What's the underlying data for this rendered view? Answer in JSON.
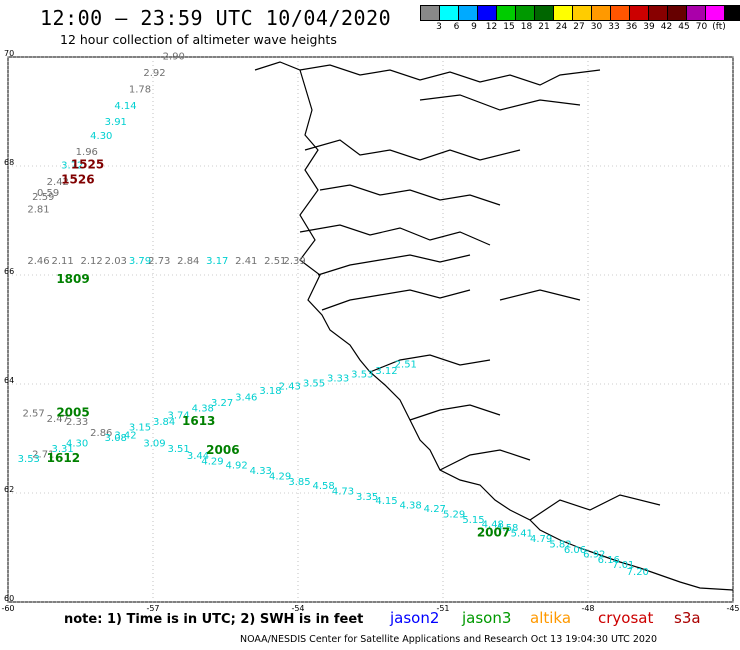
{
  "header": {
    "title": "12:00 – 23:59 UTC 10/04/2020",
    "subtitle": "12 hour collection of altimeter wave heights"
  },
  "legend": {
    "colors": [
      "#888888",
      "#00ffff",
      "#00aaff",
      "#0000ff",
      "#00cc00",
      "#009900",
      "#006600",
      "#ffff00",
      "#ffcc00",
      "#ff9900",
      "#ff5500",
      "#cc0000",
      "#880000",
      "#660000",
      "#aa00aa",
      "#ff00ff",
      "#000000"
    ],
    "labels": [
      "3",
      "6",
      "9",
      "12",
      "15",
      "18",
      "21",
      "24",
      "27",
      "30",
      "33",
      "36",
      "39",
      "42",
      "45",
      "70",
      "(ft)"
    ]
  },
  "axes": {
    "lat_ticks": [
      "70",
      "68",
      "66",
      "64",
      "62",
      "60"
    ],
    "lon_ticks": [
      "-60",
      "-57",
      "-54",
      "-51",
      "-48",
      "-45"
    ]
  },
  "tracks": [
    {
      "name": "1525",
      "color": "#800000",
      "label_lon": -58.7,
      "label_lat": 67.95
    },
    {
      "name": "1526",
      "color": "#800000",
      "label_lon": -58.9,
      "label_lat": 67.68
    },
    {
      "name": "1809",
      "color": "#008000",
      "label_lon": -59.0,
      "label_lat": 65.85
    },
    {
      "name": "2005",
      "color": "#008000",
      "label_lon": -59.0,
      "label_lat": 63.4
    },
    {
      "name": "1613",
      "color": "#008000",
      "label_lon": -56.4,
      "label_lat": 63.25
    },
    {
      "name": "2006",
      "color": "#008000",
      "label_lon": -55.9,
      "label_lat": 62.72
    },
    {
      "name": "1612",
      "color": "#008000",
      "label_lon": -59.2,
      "label_lat": 62.57
    },
    {
      "name": "2007",
      "color": "#008000",
      "label_lon": -50.3,
      "label_lat": 61.2
    }
  ],
  "observations": [
    {
      "v": "2.90",
      "c": "#707070",
      "lon": -56.8,
      "lat": 69.95
    },
    {
      "v": "2.92",
      "c": "#707070",
      "lon": -57.2,
      "lat": 69.65
    },
    {
      "v": "1.78",
      "c": "#707070",
      "lon": -57.5,
      "lat": 69.35
    },
    {
      "v": "4.14",
      "c": "#00d0d0",
      "lon": -57.8,
      "lat": 69.05
    },
    {
      "v": "3.91",
      "c": "#00d0d0",
      "lon": -58.0,
      "lat": 68.75
    },
    {
      "v": "4.30",
      "c": "#00d0d0",
      "lon": -58.3,
      "lat": 68.5
    },
    {
      "v": "1.96",
      "c": "#707070",
      "lon": -58.6,
      "lat": 68.2
    },
    {
      "v": "3.72",
      "c": "#00d0d0",
      "lon": -58.9,
      "lat": 67.95
    },
    {
      "v": "2.42",
      "c": "#707070",
      "lon": -59.2,
      "lat": 67.65
    },
    {
      "v": "0.59",
      "c": "#707070",
      "lon": -59.4,
      "lat": 67.45
    },
    {
      "v": "2.59",
      "c": "#707070",
      "lon": -59.5,
      "lat": 67.38
    },
    {
      "v": "2.81",
      "c": "#707070",
      "lon": -59.6,
      "lat": 67.15
    },
    {
      "v": "2.46",
      "c": "#707070",
      "lon": -59.6,
      "lat": 66.2
    },
    {
      "v": "2.11",
      "c": "#707070",
      "lon": -59.1,
      "lat": 66.2
    },
    {
      "v": "2.12",
      "c": "#707070",
      "lon": -58.5,
      "lat": 66.2
    },
    {
      "v": "2.03",
      "c": "#707070",
      "lon": -58.0,
      "lat": 66.2
    },
    {
      "v": "3.79",
      "c": "#00d0d0",
      "lon": -57.5,
      "lat": 66.2
    },
    {
      "v": "2.73",
      "c": "#707070",
      "lon": -57.1,
      "lat": 66.2
    },
    {
      "v": "2.84",
      "c": "#707070",
      "lon": -56.5,
      "lat": 66.2
    },
    {
      "v": "3.17",
      "c": "#00d0d0",
      "lon": -55.9,
      "lat": 66.2
    },
    {
      "v": "2.41",
      "c": "#707070",
      "lon": -55.3,
      "lat": 66.2
    },
    {
      "v": "2.51",
      "c": "#707070",
      "lon": -54.7,
      "lat": 66.2
    },
    {
      "v": "2.39",
      "c": "#707070",
      "lon": -54.3,
      "lat": 66.2
    },
    {
      "v": "2.57",
      "c": "#707070",
      "lon": -59.7,
      "lat": 63.4
    },
    {
      "v": "2.47",
      "c": "#707070",
      "lon": -59.2,
      "lat": 63.3
    },
    {
      "v": "2.33",
      "c": "#707070",
      "lon": -58.8,
      "lat": 63.25
    },
    {
      "v": "2.86",
      "c": "#707070",
      "lon": -58.3,
      "lat": 63.05
    },
    {
      "v": "3.15",
      "c": "#00d0d0",
      "lon": -57.5,
      "lat": 63.15
    },
    {
      "v": "3.08",
      "c": "#00d0d0",
      "lon": -58.0,
      "lat": 62.95
    },
    {
      "v": "3.42",
      "c": "#00d0d0",
      "lon": -57.8,
      "lat": 63.0
    },
    {
      "v": "4.30",
      "c": "#00d0d0",
      "lon": -58.8,
      "lat": 62.85
    },
    {
      "v": "3.31",
      "c": "#00d0d0",
      "lon": -59.1,
      "lat": 62.75
    },
    {
      "v": "2.71",
      "c": "#707070",
      "lon": -59.5,
      "lat": 62.65
    },
    {
      "v": "3.53",
      "c": "#00d0d0",
      "lon": -59.8,
      "lat": 62.57
    },
    {
      "v": "3.84",
      "c": "#00d0d0",
      "lon": -57.0,
      "lat": 63.25
    },
    {
      "v": "3.74",
      "c": "#00d0d0",
      "lon": -56.7,
      "lat": 63.37
    },
    {
      "v": "4.38",
      "c": "#00d0d0",
      "lon": -56.2,
      "lat": 63.5
    },
    {
      "v": "3.27",
      "c": "#00d0d0",
      "lon": -55.8,
      "lat": 63.6
    },
    {
      "v": "3.46",
      "c": "#00d0d0",
      "lon": -55.3,
      "lat": 63.7
    },
    {
      "v": "3.18",
      "c": "#00d0d0",
      "lon": -54.8,
      "lat": 63.82
    },
    {
      "v": "2.43",
      "c": "#00d0d0",
      "lon": -54.4,
      "lat": 63.9
    },
    {
      "v": "3.55",
      "c": "#00d0d0",
      "lon": -53.9,
      "lat": 63.95
    },
    {
      "v": "3.33",
      "c": "#00d0d0",
      "lon": -53.4,
      "lat": 64.05
    },
    {
      "v": "3.53",
      "c": "#00d0d0",
      "lon": -52.9,
      "lat": 64.12
    },
    {
      "v": "3.12",
      "c": "#00d0d0",
      "lon": -52.4,
      "lat": 64.18
    },
    {
      "v": "2.51",
      "c": "#00d0d0",
      "lon": -52.0,
      "lat": 64.3
    },
    {
      "v": "3.09",
      "c": "#00d0d0",
      "lon": -57.2,
      "lat": 62.85
    },
    {
      "v": "3.51",
      "c": "#00d0d0",
      "lon": -56.7,
      "lat": 62.75
    },
    {
      "v": "3.44",
      "c": "#00d0d0",
      "lon": -56.3,
      "lat": 62.62
    },
    {
      "v": "4.29",
      "c": "#00d0d0",
      "lon": -56.0,
      "lat": 62.52
    },
    {
      "v": "4.92",
      "c": "#00d0d0",
      "lon": -55.5,
      "lat": 62.45
    },
    {
      "v": "4.33",
      "c": "#00d0d0",
      "lon": -55.0,
      "lat": 62.35
    },
    {
      "v": "4.29",
      "c": "#00d0d0",
      "lon": -54.6,
      "lat": 62.25
    },
    {
      "v": "3.85",
      "c": "#00d0d0",
      "lon": -54.2,
      "lat": 62.15
    },
    {
      "v": "4.58",
      "c": "#00d0d0",
      "lon": -53.7,
      "lat": 62.07
    },
    {
      "v": "4.73",
      "c": "#00d0d0",
      "lon": -53.3,
      "lat": 61.97
    },
    {
      "v": "3.35",
      "c": "#00d0d0",
      "lon": -52.8,
      "lat": 61.87
    },
    {
      "v": "4.15",
      "c": "#00d0d0",
      "lon": -52.4,
      "lat": 61.8
    },
    {
      "v": "4.38",
      "c": "#00d0d0",
      "lon": -51.9,
      "lat": 61.72
    },
    {
      "v": "4.27",
      "c": "#00d0d0",
      "lon": -51.4,
      "lat": 61.65
    },
    {
      "v": "5.29",
      "c": "#00d0d0",
      "lon": -51.0,
      "lat": 61.55
    },
    {
      "v": "5.15",
      "c": "#00d0d0",
      "lon": -50.6,
      "lat": 61.45
    },
    {
      "v": "4.48",
      "c": "#00d0d0",
      "lon": -50.2,
      "lat": 61.37
    },
    {
      "v": "4.58",
      "c": "#00d0d0",
      "lon": -49.9,
      "lat": 61.3
    },
    {
      "v": "5.41",
      "c": "#00d0d0",
      "lon": -49.6,
      "lat": 61.2
    },
    {
      "v": "4.79",
      "c": "#00d0d0",
      "lon": -49.2,
      "lat": 61.1
    },
    {
      "v": "5.82",
      "c": "#00d0d0",
      "lon": -48.8,
      "lat": 61.0
    },
    {
      "v": "6.06",
      "c": "#00d0d0",
      "lon": -48.5,
      "lat": 60.9
    },
    {
      "v": "6.92",
      "c": "#00d0d0",
      "lon": -48.1,
      "lat": 60.82
    },
    {
      "v": "6.16",
      "c": "#00d0d0",
      "lon": -47.8,
      "lat": 60.72
    },
    {
      "v": "7.01",
      "c": "#00d0d0",
      "lon": -47.5,
      "lat": 60.62
    },
    {
      "v": "7.20",
      "c": "#00d0d0",
      "lon": -47.2,
      "lat": 60.5
    }
  ],
  "footer": {
    "note": "note: 1) Time is in UTC; 2) SWH is in feet",
    "sat_jason2": "jason2",
    "sat_jason3": "jason3",
    "sat_altika": "altika",
    "sat_cryosat": "cryosat",
    "sat_s3a": "s3a",
    "credit": "NOAA/NESDIS Center for Satellite Applications and Research     Oct 13 19:04:30 UTC 2020"
  }
}
